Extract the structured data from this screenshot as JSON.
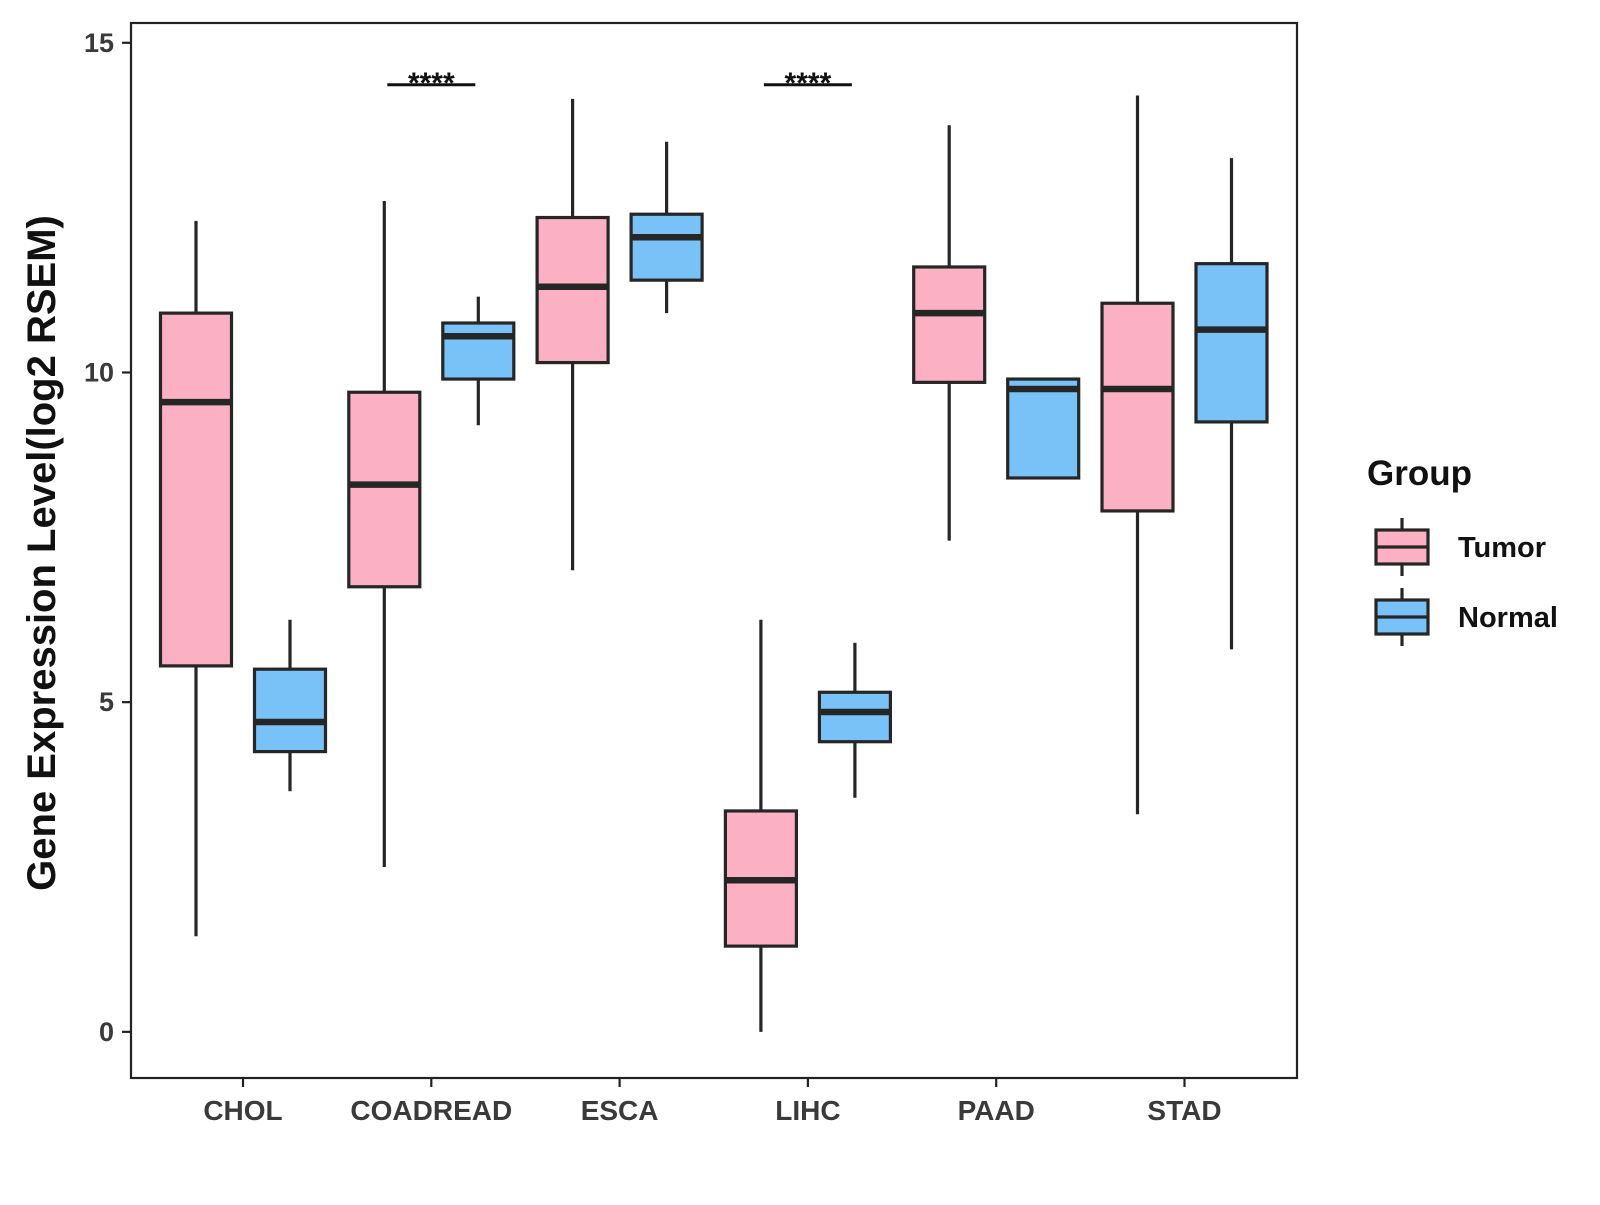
{
  "chart_data": {
    "type": "boxplot",
    "title": "",
    "xlabel": "",
    "ylabel": "Gene Expression Level(log2 RSEM)",
    "ylim": [
      -0.7,
      15.3
    ],
    "yticks": [
      0,
      5,
      10,
      15
    ],
    "categories": [
      "CHOL",
      "COADREAD",
      "ESCA",
      "LIHC",
      "PAAD",
      "STAD"
    ],
    "legend": {
      "title": "Group",
      "position": "right",
      "entries": [
        "Tumor",
        "Normal"
      ]
    },
    "colors": {
      "Tumor": "#fbb1c3",
      "Normal": "#78c2f8",
      "outline": "#262626"
    },
    "series": [
      {
        "name": "Tumor",
        "boxes": [
          {
            "category": "CHOL",
            "whisker_low": 1.45,
            "q1": 5.55,
            "median": 9.55,
            "q3": 10.9,
            "whisker_high": 12.3
          },
          {
            "category": "COADREAD",
            "whisker_low": 2.5,
            "q1": 6.75,
            "median": 8.3,
            "q3": 9.7,
            "whisker_high": 12.6
          },
          {
            "category": "ESCA",
            "whisker_low": 7.0,
            "q1": 10.15,
            "median": 11.3,
            "q3": 12.35,
            "whisker_high": 14.15
          },
          {
            "category": "LIHC",
            "whisker_low": 0.0,
            "q1": 1.3,
            "median": 2.3,
            "q3": 3.35,
            "whisker_high": 6.25
          },
          {
            "category": "PAAD",
            "whisker_low": 7.45,
            "q1": 9.85,
            "median": 10.9,
            "q3": 11.6,
            "whisker_high": 13.75
          },
          {
            "category": "STAD",
            "whisker_low": 3.3,
            "q1": 7.9,
            "median": 9.75,
            "q3": 11.05,
            "whisker_high": 14.2
          }
        ]
      },
      {
        "name": "Normal",
        "boxes": [
          {
            "category": "CHOL",
            "whisker_low": 3.65,
            "q1": 4.25,
            "median": 4.7,
            "q3": 5.5,
            "whisker_high": 6.25
          },
          {
            "category": "COADREAD",
            "whisker_low": 9.2,
            "q1": 9.9,
            "median": 10.55,
            "q3": 10.75,
            "whisker_high": 11.15
          },
          {
            "category": "ESCA",
            "whisker_low": 10.9,
            "q1": 11.4,
            "median": 12.05,
            "q3": 12.4,
            "whisker_high": 13.5
          },
          {
            "category": "LIHC",
            "whisker_low": 3.55,
            "q1": 4.4,
            "median": 4.85,
            "q3": 5.15,
            "whisker_high": 5.9
          },
          {
            "category": "PAAD",
            "whisker_low": 8.4,
            "q1": 8.4,
            "median": 9.75,
            "q3": 9.9,
            "whisker_high": 9.9
          },
          {
            "category": "STAD",
            "whisker_low": 5.8,
            "q1": 9.25,
            "median": 10.65,
            "q3": 11.65,
            "whisker_high": 13.25
          }
        ]
      }
    ],
    "annotations": [
      {
        "category": "COADREAD",
        "label": "****",
        "y": 14.5
      },
      {
        "category": "LIHC",
        "label": "****",
        "y": 14.5
      }
    ]
  }
}
